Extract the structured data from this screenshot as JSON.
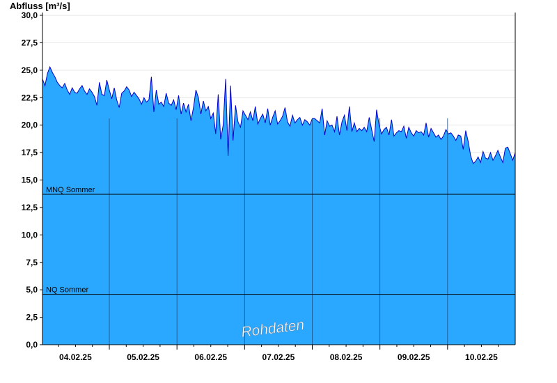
{
  "chart_data": {
    "type": "area",
    "ylabel": "Abfluss [m³/s]",
    "xlabel": "",
    "ylim": [
      0,
      30
    ],
    "yticks": [
      "0,0",
      "2,5",
      "5,0",
      "7,5",
      "10,0",
      "12,5",
      "15,0",
      "17,5",
      "20,0",
      "22,5",
      "25,0",
      "27,5",
      "30,0"
    ],
    "x_range_days": [
      "03.02.25 18:00",
      "10.02.25 24:00"
    ],
    "xtick_labels": [
      "04.02.25",
      "05.02.25",
      "06.02.25",
      "07.02.25",
      "08.02.25",
      "09.02.25",
      "10.02.25"
    ],
    "day_separators": [
      "05.02.25",
      "06.02.25",
      "07.02.25",
      "08.02.25",
      "09.02.25",
      "10.02.25"
    ],
    "series": [
      {
        "x_start_day_offset": 0,
        "x_end_day_offset": 7,
        "values": [
          24.2,
          23.6,
          24.7,
          25.3,
          24.8,
          24.4,
          23.9,
          23.6,
          23.4,
          23.8,
          23.2,
          22.8,
          23.4,
          23.0,
          22.9,
          23.3,
          23.6,
          23.1,
          22.8,
          23.3,
          23.0,
          22.6,
          21.8,
          23.9,
          22.8,
          22.7,
          24.1,
          23.2,
          22.4,
          23.4,
          22.3,
          21.6,
          22.9,
          23.1,
          23.5,
          23.2,
          22.6,
          23.0,
          22.7,
          22.4,
          21.9,
          22.5,
          22.1,
          22.3,
          24.4,
          21.2,
          23.2,
          21.9,
          22.1,
          21.7,
          22.9,
          22.0,
          21.8,
          22.3,
          21.4,
          22.7,
          21.0,
          22.0,
          21.2,
          21.9,
          20.4,
          21.6,
          23.2,
          22.5,
          21.0,
          22.2,
          21.3,
          21.7,
          20.6,
          21.1,
          19.2,
          22.8,
          18.7,
          20.0,
          24.2,
          17.2,
          23.6,
          18.6,
          21.8,
          20.3,
          19.8,
          21.3,
          20.9,
          20.5,
          21.2,
          20.4,
          21.7,
          20.1,
          20.6,
          21.0,
          20.2,
          21.5,
          20.0,
          20.7,
          21.3,
          20.1,
          20.4,
          20.8,
          21.6,
          20.3,
          19.9,
          20.9,
          20.2,
          20.5,
          20.7,
          20.0,
          20.5,
          20.3,
          20.0,
          20.6,
          20.6,
          20.4,
          20.2,
          21.5,
          19.1,
          20.4,
          19.9,
          20.0,
          19.4,
          20.8,
          19.1,
          20.3,
          20.9,
          19.5,
          21.7,
          19.4,
          20.2,
          19.4,
          19.7,
          19.5,
          19.8,
          19.4,
          20.7,
          19.6,
          18.5,
          21.4,
          20.0,
          19.2,
          19.6,
          19.8,
          19.1,
          20.5,
          19.0,
          19.3,
          19.5,
          19.4,
          19.9,
          18.8,
          19.8,
          19.3,
          19.0,
          19.5,
          19.3,
          19.4,
          19.1,
          20.2,
          18.9,
          19.7,
          19.3,
          18.9,
          19.1,
          18.7,
          19.0,
          19.6,
          19.2,
          19.3,
          19.0,
          18.6,
          19.1,
          19.0,
          17.8,
          19.5,
          18.5,
          17.2,
          16.5,
          16.7,
          17.1,
          16.6,
          17.6,
          17.0,
          16.9,
          17.5,
          16.8,
          17.2,
          17.7,
          17.1,
          16.6,
          17.9,
          18.0,
          17.4,
          16.8,
          17.5
        ]
      }
    ],
    "reference_lines": [
      {
        "label": "MNQ Sommer",
        "value": 13.7
      },
      {
        "label": "NQ Sommer",
        "value": 4.6
      }
    ],
    "watermark": "Rohdaten",
    "grid": true,
    "colors": {
      "fill": "#2aa7ff",
      "line": "#0000cc",
      "grid": "#e4e4e4",
      "separator": "#1c4f86",
      "ref": "#000000"
    }
  }
}
